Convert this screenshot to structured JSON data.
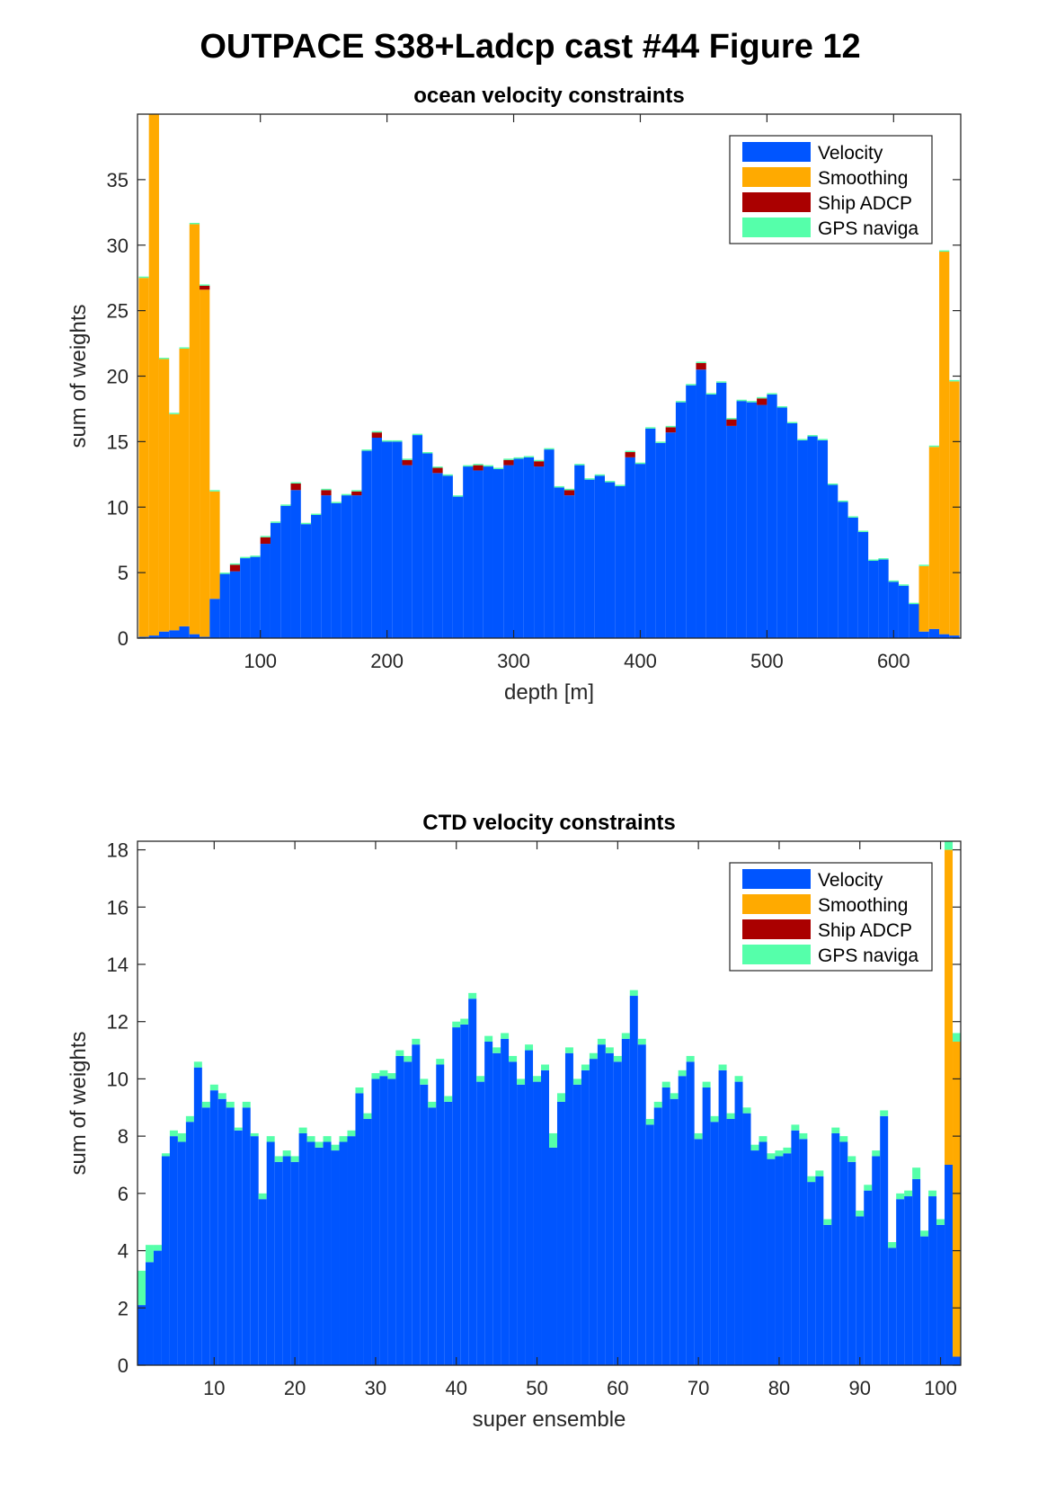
{
  "figure": {
    "title": "OUTPACE S38+Ladcp cast #44  Figure 12",
    "background": "#ffffff"
  },
  "colors": {
    "velocity": "#0055ff",
    "smoothing": "#ffaa00",
    "ship_adcp": "#aa0000",
    "gps": "#55ffaa"
  },
  "chart_data": [
    {
      "type": "bar",
      "stacked": true,
      "title": "ocean velocity constraints",
      "xlabel": "depth [m]",
      "ylabel": "sum of weights",
      "xlim": [
        3,
        653
      ],
      "ylim": [
        0,
        40
      ],
      "xticks": [
        100,
        200,
        300,
        400,
        500,
        600
      ],
      "yticks": [
        0,
        5,
        10,
        15,
        20,
        25,
        30,
        35
      ],
      "grid": false,
      "legend_position": "top-right",
      "bin_width": 8,
      "x": [
        8,
        16,
        24,
        32,
        40,
        48,
        56,
        64,
        72,
        80,
        88,
        96,
        104,
        112,
        120,
        128,
        136,
        144,
        152,
        160,
        168,
        176,
        184,
        192,
        200,
        208,
        216,
        224,
        232,
        240,
        248,
        256,
        264,
        272,
        280,
        288,
        296,
        304,
        312,
        320,
        328,
        336,
        344,
        352,
        360,
        368,
        376,
        384,
        392,
        400,
        408,
        416,
        424,
        432,
        440,
        448,
        456,
        464,
        472,
        480,
        488,
        496,
        504,
        512,
        520,
        528,
        536,
        544,
        552,
        560,
        568,
        576,
        584,
        592,
        600,
        608,
        616,
        624,
        632,
        640,
        648
      ],
      "series": [
        {
          "name": "Velocity",
          "values": [
            0.1,
            0.2,
            0.5,
            0.6,
            0.9,
            0.3,
            0.1,
            3.0,
            4.9,
            5.1,
            6.1,
            6.2,
            7.2,
            8.8,
            10.1,
            11.3,
            8.7,
            9.4,
            10.9,
            10.3,
            10.9,
            10.9,
            14.3,
            15.3,
            15.0,
            15.0,
            13.2,
            15.5,
            14.1,
            12.6,
            12.4,
            10.8,
            13.1,
            12.8,
            13.1,
            12.9,
            13.2,
            13.7,
            13.8,
            13.1,
            14.4,
            11.5,
            10.9,
            13.2,
            12.1,
            12.4,
            11.9,
            11.6,
            13.8,
            13.3,
            16.0,
            14.9,
            15.7,
            18.0,
            19.3,
            20.5,
            18.6,
            19.5,
            16.2,
            18.1,
            18.0,
            17.8,
            18.6,
            17.6,
            16.4,
            15.1,
            15.4,
            15.1,
            11.7,
            10.4,
            9.2,
            8.1,
            5.9,
            6.0,
            4.3,
            4.0,
            2.6,
            0.5,
            0.7,
            0.3,
            0.2
          ]
        },
        {
          "name": "Smoothing",
          "values": [
            27.4,
            39.8,
            20.8,
            16.5,
            21.2,
            31.3,
            26.5,
            8.2,
            0,
            0,
            0,
            0,
            0,
            0,
            0,
            0,
            0,
            0,
            0,
            0,
            0,
            0,
            0,
            0,
            0,
            0,
            0,
            0,
            0,
            0,
            0,
            0,
            0,
            0,
            0,
            0,
            0,
            0,
            0,
            0,
            0,
            0,
            0,
            0,
            0,
            0,
            0,
            0,
            0,
            0,
            0,
            0,
            0,
            0,
            0,
            0,
            0,
            0,
            0,
            0,
            0,
            0,
            0,
            0,
            0,
            0,
            0,
            0,
            0,
            0,
            0,
            0,
            0,
            0,
            0,
            0,
            0,
            5.0,
            13.9,
            29.2,
            19.4
          ]
        },
        {
          "name": "Ship ADCP",
          "values": [
            0,
            0,
            0,
            0,
            0,
            0,
            0.3,
            0,
            0,
            0.5,
            0,
            0,
            0.5,
            0,
            0,
            0.5,
            0,
            0,
            0.4,
            0,
            0,
            0.3,
            0,
            0.4,
            0,
            0,
            0.4,
            0,
            0,
            0.4,
            0,
            0,
            0,
            0.4,
            0,
            0,
            0.4,
            0,
            0,
            0.4,
            0,
            0,
            0.4,
            0,
            0,
            0,
            0,
            0,
            0.4,
            0,
            0,
            0,
            0.4,
            0,
            0,
            0.5,
            0,
            0,
            0.5,
            0,
            0,
            0.5,
            0,
            0,
            0,
            0,
            0,
            0,
            0,
            0,
            0,
            0,
            0,
            0,
            0,
            0,
            0,
            0,
            0,
            0,
            0
          ]
        },
        {
          "name": "GPS naviga",
          "values": [
            0.1,
            0.1,
            0.1,
            0.1,
            0.1,
            0.1,
            0.1,
            0.1,
            0.1,
            0.1,
            0.1,
            0.1,
            0.1,
            0.1,
            0.1,
            0.1,
            0.1,
            0.1,
            0.1,
            0.1,
            0.1,
            0.1,
            0.1,
            0.1,
            0.1,
            0.1,
            0.1,
            0.1,
            0.1,
            0.1,
            0.1,
            0.1,
            0.1,
            0.1,
            0.1,
            0.1,
            0.1,
            0.1,
            0.1,
            0.1,
            0.1,
            0.1,
            0.1,
            0.1,
            0.1,
            0.1,
            0.1,
            0.1,
            0.1,
            0.1,
            0.1,
            0.1,
            0.1,
            0.1,
            0.1,
            0.1,
            0.1,
            0.1,
            0.1,
            0.1,
            0.1,
            0.1,
            0.1,
            0.1,
            0.1,
            0.1,
            0.1,
            0.1,
            0.1,
            0.1,
            0.1,
            0.1,
            0.1,
            0.1,
            0.1,
            0.1,
            0.1,
            0.1,
            0.1,
            0.1,
            0.1
          ]
        }
      ]
    },
    {
      "type": "bar",
      "stacked": true,
      "title": "CTD velocity constraints",
      "xlabel": "super ensemble",
      "ylabel": "sum of weights",
      "xlim": [
        0.5,
        102.5
      ],
      "ylim": [
        0,
        18.3
      ],
      "xticks": [
        10,
        20,
        30,
        40,
        50,
        60,
        70,
        80,
        90,
        100
      ],
      "yticks": [
        0,
        2,
        4,
        6,
        8,
        10,
        12,
        14,
        16,
        18
      ],
      "grid": false,
      "legend_position": "top-right",
      "bin_width": 1,
      "x": [
        1,
        2,
        3,
        4,
        5,
        6,
        7,
        8,
        9,
        10,
        11,
        12,
        13,
        14,
        15,
        16,
        17,
        18,
        19,
        20,
        21,
        22,
        23,
        24,
        25,
        26,
        27,
        28,
        29,
        30,
        31,
        32,
        33,
        34,
        35,
        36,
        37,
        38,
        39,
        40,
        41,
        42,
        43,
        44,
        45,
        46,
        47,
        48,
        49,
        50,
        51,
        52,
        53,
        54,
        55,
        56,
        57,
        58,
        59,
        60,
        61,
        62,
        63,
        64,
        65,
        66,
        67,
        68,
        69,
        70,
        71,
        72,
        73,
        74,
        75,
        76,
        77,
        78,
        79,
        80,
        81,
        82,
        83,
        84,
        85,
        86,
        87,
        88,
        89,
        90,
        91,
        92,
        93,
        94,
        95,
        96,
        97,
        98,
        99,
        100,
        101,
        102
      ],
      "series": [
        {
          "name": "Velocity",
          "values": [
            2.1,
            3.6,
            4.0,
            7.3,
            8.0,
            7.8,
            8.5,
            10.4,
            9.0,
            9.6,
            9.3,
            9.0,
            8.2,
            9.0,
            8.0,
            5.8,
            7.8,
            7.1,
            7.3,
            7.1,
            8.1,
            7.8,
            7.6,
            7.8,
            7.5,
            7.8,
            8.0,
            9.5,
            8.6,
            10.0,
            10.1,
            10.0,
            10.8,
            10.6,
            11.2,
            9.8,
            9.0,
            10.5,
            9.2,
            11.8,
            11.9,
            12.8,
            9.9,
            11.3,
            10.9,
            11.4,
            10.6,
            9.8,
            11.0,
            9.9,
            10.3,
            7.6,
            9.2,
            10.9,
            9.8,
            10.3,
            10.7,
            11.2,
            10.9,
            10.6,
            11.4,
            12.9,
            11.2,
            8.4,
            9.0,
            9.7,
            9.3,
            10.1,
            10.6,
            7.9,
            9.7,
            8.5,
            10.3,
            8.6,
            9.9,
            8.8,
            7.5,
            7.8,
            7.2,
            7.3,
            7.4,
            8.2,
            7.9,
            6.4,
            6.6,
            4.9,
            8.1,
            7.8,
            7.1,
            5.2,
            6.1,
            7.3,
            8.7,
            4.1,
            5.8,
            5.9,
            6.5,
            4.5,
            5.9,
            4.9,
            7.0,
            0.3
          ]
        },
        {
          "name": "Smoothing",
          "values": [
            0,
            0,
            0,
            0,
            0,
            0,
            0,
            0,
            0,
            0,
            0,
            0,
            0,
            0,
            0,
            0,
            0,
            0,
            0,
            0,
            0,
            0,
            0,
            0,
            0,
            0,
            0,
            0,
            0,
            0,
            0,
            0,
            0,
            0,
            0,
            0,
            0,
            0,
            0,
            0,
            0,
            0,
            0,
            0,
            0,
            0,
            0,
            0,
            0,
            0,
            0,
            0,
            0,
            0,
            0,
            0,
            0,
            0,
            0,
            0,
            0,
            0,
            0,
            0,
            0,
            0,
            0,
            0,
            0,
            0,
            0,
            0,
            0,
            0,
            0,
            0,
            0,
            0,
            0,
            0,
            0,
            0,
            0,
            0,
            0,
            0,
            0,
            0,
            0,
            0,
            0,
            0,
            0,
            0,
            0,
            0,
            0,
            0,
            0,
            0,
            11.0,
            11.0
          ]
        },
        {
          "name": "Ship ADCP",
          "values": [
            0,
            0,
            0,
            0,
            0,
            0,
            0,
            0,
            0,
            0,
            0,
            0,
            0,
            0,
            0,
            0,
            0,
            0,
            0,
            0,
            0,
            0,
            0,
            0,
            0,
            0,
            0,
            0,
            0,
            0,
            0,
            0,
            0,
            0,
            0,
            0,
            0,
            0,
            0,
            0,
            0,
            0,
            0,
            0,
            0,
            0,
            0,
            0,
            0,
            0,
            0,
            0,
            0,
            0,
            0,
            0,
            0,
            0,
            0,
            0,
            0,
            0,
            0,
            0,
            0,
            0,
            0,
            0,
            0,
            0,
            0,
            0,
            0,
            0,
            0,
            0,
            0,
            0,
            0,
            0,
            0,
            0,
            0,
            0,
            0,
            0,
            0,
            0,
            0,
            0,
            0,
            0,
            0,
            0,
            0,
            0,
            0,
            0,
            0,
            0,
            0,
            0
          ]
        },
        {
          "name": "GPS naviga",
          "values": [
            1.2,
            0.6,
            0.2,
            0.1,
            0.2,
            0.3,
            0.2,
            0.2,
            0.2,
            0.2,
            0.2,
            0.2,
            0.1,
            0.2,
            0.1,
            0.2,
            0.2,
            0.2,
            0.2,
            0.2,
            0.2,
            0.2,
            0.2,
            0.2,
            0.2,
            0.2,
            0.2,
            0.2,
            0.2,
            0.2,
            0.2,
            0.2,
            0.2,
            0.2,
            0.2,
            0.2,
            0.2,
            0.2,
            0.2,
            0.2,
            0.2,
            0.2,
            0.2,
            0.2,
            0.2,
            0.2,
            0.2,
            0.2,
            0.2,
            0.2,
            0.2,
            0.5,
            0.3,
            0.2,
            0.2,
            0.2,
            0.2,
            0.2,
            0.2,
            0.2,
            0.2,
            0.2,
            0.2,
            0.2,
            0.2,
            0.2,
            0.2,
            0.2,
            0.2,
            0.2,
            0.2,
            0.2,
            0.2,
            0.2,
            0.2,
            0.2,
            0.2,
            0.2,
            0.2,
            0.2,
            0.2,
            0.2,
            0.2,
            0.2,
            0.2,
            0.2,
            0.2,
            0.2,
            0.2,
            0.2,
            0.2,
            0.2,
            0.2,
            0.2,
            0.2,
            0.2,
            0.4,
            0.2,
            0.2,
            0.2,
            0.3,
            0.3
          ]
        }
      ]
    }
  ]
}
